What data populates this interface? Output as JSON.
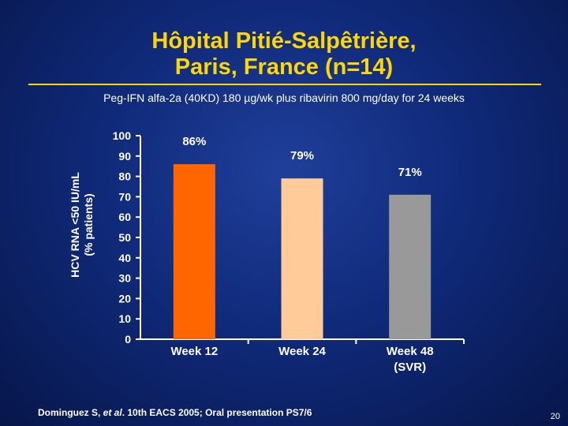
{
  "slide": {
    "title_line1": "Hôpital Pitié-Salpêtrière,",
    "title_line2": "Paris, France (n=14)",
    "subtitle": "Peg-IFN alfa-2a (40KD) 180 µg/wk plus ribavirin 800 mg/day for 24 weeks",
    "footer_pre": "Dominguez S, ",
    "footer_italic": "et al",
    "footer_post": ". 10th EACS 2005; Oral presentation PS7/6",
    "page_number": "20"
  },
  "chart_data": {
    "type": "bar",
    "ylabel_line1": "HCV RNA <50 IU/mL",
    "ylabel_line2": "(% patients)",
    "ylim": [
      0,
      100
    ],
    "yticks": [
      0,
      10,
      20,
      30,
      40,
      50,
      60,
      70,
      80,
      90,
      100
    ],
    "categories": [
      {
        "line1": "Week 12",
        "line2": ""
      },
      {
        "line1": "Week 24",
        "line2": ""
      },
      {
        "line1": "Week 48",
        "line2": "(SVR)"
      }
    ],
    "values": [
      86,
      79,
      71
    ],
    "data_labels": [
      "86%",
      "79%",
      "71%"
    ],
    "colors": [
      "#ff6600",
      "#ffcc99",
      "#999999"
    ],
    "grid": false
  }
}
